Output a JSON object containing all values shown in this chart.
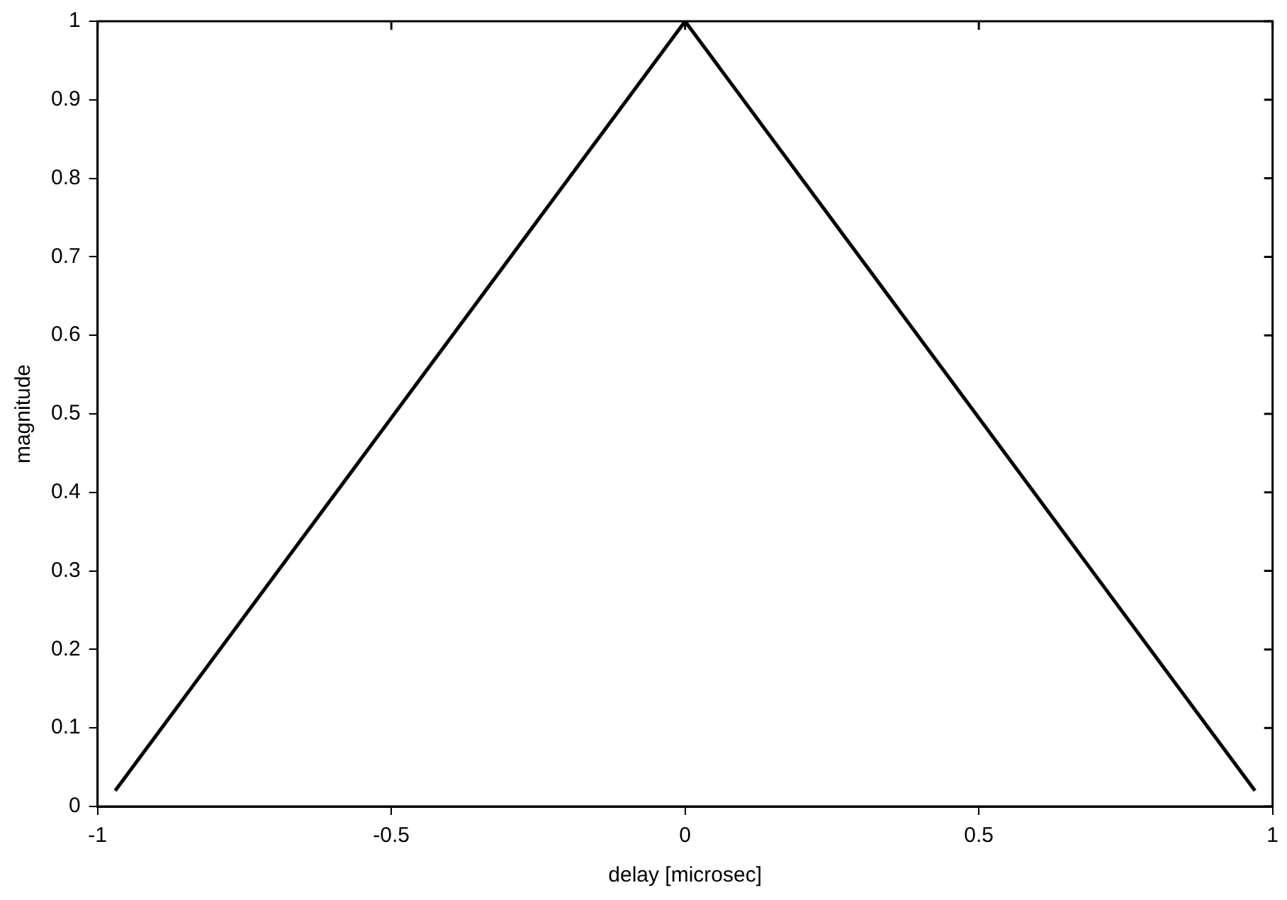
{
  "chart_data": {
    "type": "line",
    "xlabel": "delay [microsec]",
    "ylabel": "magnitude",
    "x": [
      -0.97,
      0,
      0.97
    ],
    "series": [
      {
        "color": "#000000",
        "values": [
          0.02,
          1,
          0.02
        ]
      }
    ],
    "xlim": [
      -1,
      1
    ],
    "xticks": [
      -1,
      -0.5,
      0,
      0.5,
      1
    ],
    "ylim": [
      0,
      1
    ],
    "yticks": [
      0,
      0.1,
      0.2,
      0.3,
      0.4,
      0.5,
      0.6,
      0.7,
      0.8,
      0.9,
      1
    ],
    "grid": false,
    "legend": false,
    "marker": "none",
    "line_style": "solid"
  }
}
